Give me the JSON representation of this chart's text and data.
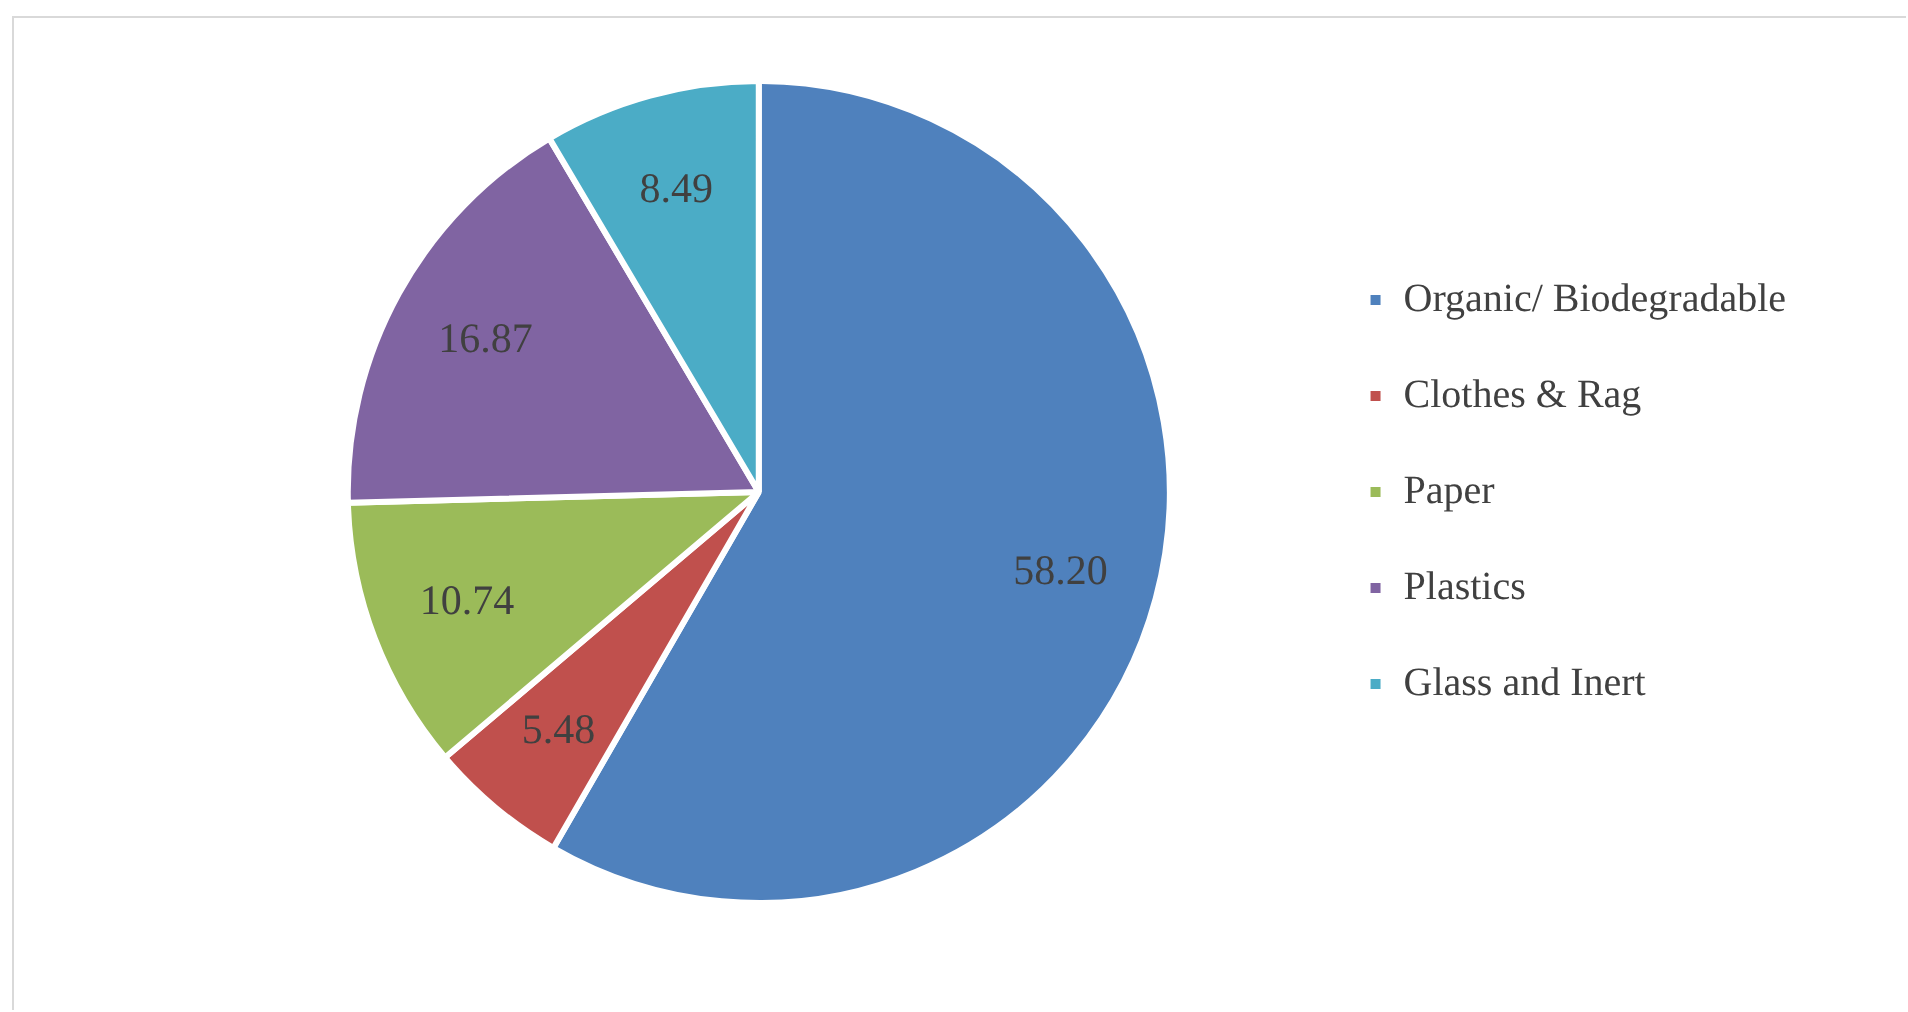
{
  "chart_data": {
    "type": "pie",
    "categories": [
      "Organic/ Biodegradable",
      "Clothes & Rag",
      "Paper",
      "Plastics",
      "Glass and Inert"
    ],
    "values": [
      58.2,
      5.48,
      10.74,
      16.87,
      8.49
    ],
    "colors": [
      "#4f81bd",
      "#c0504d",
      "#9bbb59",
      "#8064a2",
      "#4bacc6"
    ],
    "value_labels": [
      "58.20",
      "5.48",
      "10.74",
      "16.87",
      "8.49"
    ],
    "legend": "right"
  }
}
